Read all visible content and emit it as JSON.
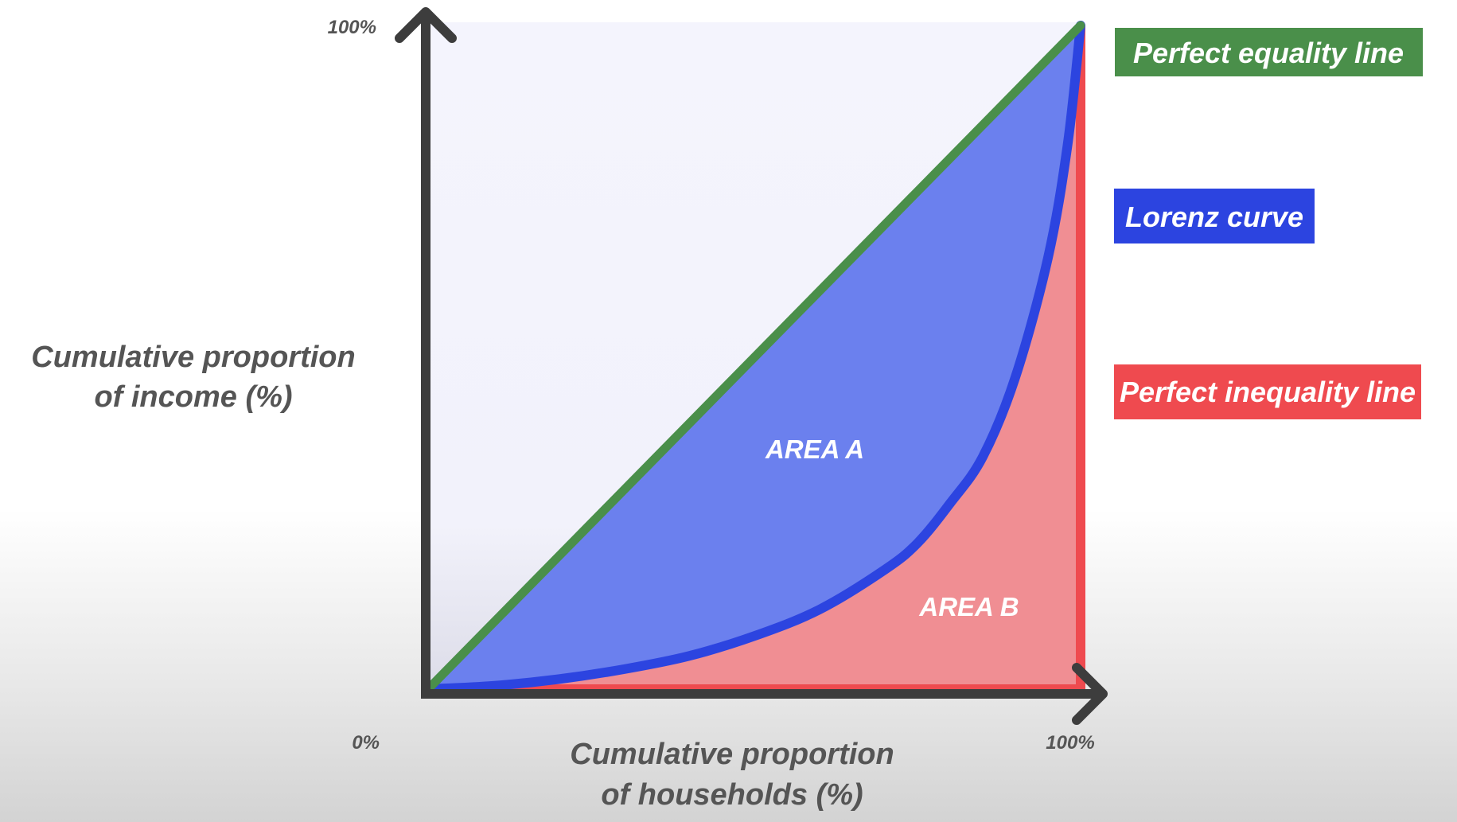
{
  "chart_data": {
    "type": "area",
    "x_axis": {
      "title_line1": "Cumulative proportion",
      "title_line2": "of households (%)",
      "min_label": "0%",
      "max_label": "100%"
    },
    "y_axis": {
      "title_line1": "Cumulative proportion",
      "title_line2": "of income (%)",
      "max_label": "100%"
    },
    "series": [
      {
        "name": "Perfect equality line",
        "color": "#4a8f4a",
        "x": [
          0,
          100
        ],
        "y": [
          0,
          100
        ]
      },
      {
        "name": "Lorenz curve",
        "color": "#2c44e0",
        "x": [
          0,
          10,
          20,
          30,
          40,
          50,
          60,
          70,
          75,
          80,
          85,
          90,
          95,
          98,
          100
        ],
        "y": [
          0,
          0.5,
          1.5,
          3,
          5,
          8,
          12,
          18,
          22,
          28,
          35,
          47,
          65,
          82,
          100
        ]
      },
      {
        "name": "Perfect inequality line",
        "color": "#ef4a4f",
        "x": [
          0,
          100,
          100
        ],
        "y": [
          0,
          0,
          100
        ]
      }
    ],
    "regions": [
      {
        "label": "AREA A",
        "between": [
          "Perfect equality line",
          "Lorenz curve"
        ],
        "color": "#6b80ee"
      },
      {
        "label": "AREA B",
        "between": [
          "Lorenz curve",
          "Perfect inequality line"
        ],
        "color": "#f08e93"
      }
    ],
    "xlim": [
      0,
      100
    ],
    "ylim": [
      0,
      100
    ],
    "legend_position": "right"
  }
}
